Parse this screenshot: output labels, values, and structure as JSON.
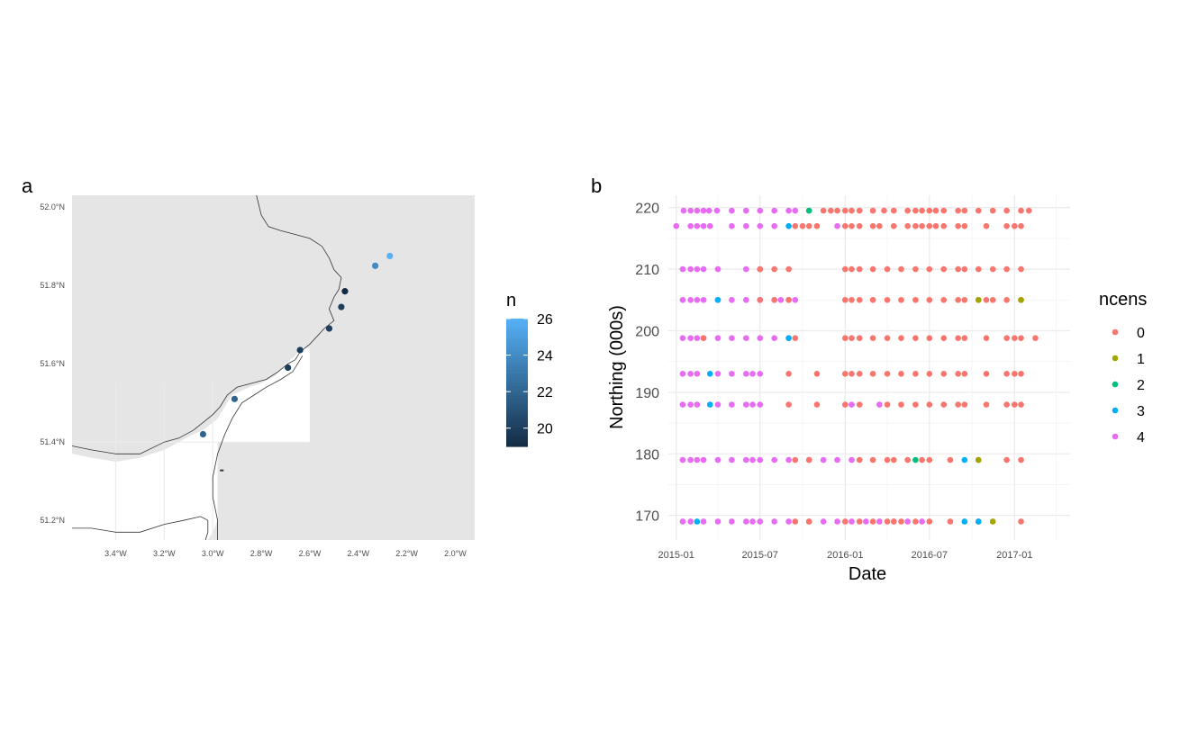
{
  "chart_data": [
    {
      "panel": "a",
      "type": "scatter",
      "subtype": "map",
      "x_ticks": [
        "3.4°W",
        "3.2°W",
        "3.0°W",
        "2.8°W",
        "2.6°W",
        "2.4°W",
        "2.2°W",
        "2.0°W"
      ],
      "y_ticks": [
        "51.2°N",
        "51.4°N",
        "51.6°N",
        "51.8°N",
        "52.0°N"
      ],
      "xlim": [
        -3.58,
        -1.92
      ],
      "ylim": [
        51.15,
        52.03
      ],
      "points": [
        {
          "lon": -3.04,
          "lat": 51.42,
          "n": 22
        },
        {
          "lon": -2.91,
          "lat": 51.51,
          "n": 22
        },
        {
          "lon": -2.69,
          "lat": 51.59,
          "n": 20
        },
        {
          "lon": -2.64,
          "lat": 51.635,
          "n": 20
        },
        {
          "lon": -2.52,
          "lat": 51.69,
          "n": 20
        },
        {
          "lon": -2.47,
          "lat": 51.745,
          "n": 20
        },
        {
          "lon": -2.455,
          "lat": 51.785,
          "n": 19
        },
        {
          "lon": -2.33,
          "lat": 51.85,
          "n": 24
        },
        {
          "lon": -2.27,
          "lat": 51.875,
          "n": 26
        }
      ],
      "legend": {
        "title": "n",
        "ticks": [
          20,
          22,
          24,
          26
        ],
        "range": [
          19,
          26
        ],
        "colors": {
          "low": "#132B43",
          "high": "#56B1F7"
        }
      },
      "colors": {
        "panel_background": "#e5e5e5",
        "land": "#ffffff",
        "coast": "#333333"
      },
      "grid": false
    },
    {
      "panel": "b",
      "type": "scatter",
      "xlabel": "Date",
      "ylabel": "Northing (000s)",
      "x_ticks": [
        "2015-01",
        "2015-07",
        "2016-01",
        "2016-07",
        "2017-01"
      ],
      "y_ticks": [
        170,
        180,
        190,
        200,
        210,
        220
      ],
      "xlim": [
        "2014-12-15",
        "2017-05-01"
      ],
      "ylim": [
        166,
        222
      ],
      "grid": true,
      "legend": {
        "title": "ncens",
        "placement": "right",
        "entries": [
          {
            "label": "0",
            "color": "#F8766D"
          },
          {
            "label": "1",
            "color": "#A3A500"
          },
          {
            "label": "2",
            "color": "#00BF7D"
          },
          {
            "label": "3",
            "color": "#00B0F6"
          },
          {
            "label": "4",
            "color": "#E76BF3"
          }
        ]
      },
      "rows": [
        {
          "y": 219.5,
          "c4": [
            "2015-01-17",
            "2015-02-01",
            "2015-02-15",
            "2015-03-01",
            "2015-03-13",
            "2015-03-30",
            "2015-05-01",
            "2015-06-01",
            "2015-07-01",
            "2015-08-01",
            "2015-09-01",
            "2015-09-15"
          ],
          "c0": [
            "2015-10-15",
            "2015-11-15",
            "2015-12-01",
            "2015-12-15",
            "2016-01-01",
            "2016-01-15",
            "2016-02-01",
            "2016-03-01",
            "2016-03-25",
            "2016-04-15",
            "2016-05-15",
            "2016-06-01",
            "2016-06-15",
            "2016-07-01",
            "2016-07-15",
            "2016-08-01",
            "2016-09-01",
            "2016-09-15",
            "2016-10-15",
            "2016-11-15",
            "2016-12-15",
            "2017-01-15",
            "2017-02-01"
          ],
          "c2": [
            "2015-10-15"
          ]
        },
        {
          "y": 217,
          "c4": [
            "2015-01-01",
            "2015-02-01",
            "2015-02-15",
            "2015-03-01",
            "2015-03-15",
            "2015-05-01",
            "2015-06-01",
            "2015-07-01",
            "2015-08-01",
            "2015-12-15"
          ],
          "c0": [
            "2015-09-15",
            "2015-10-01",
            "2015-10-15",
            "2015-11-01",
            "2016-01-01",
            "2016-01-15",
            "2016-02-01",
            "2016-03-01",
            "2016-03-15",
            "2016-04-15",
            "2016-05-15",
            "2016-06-01",
            "2016-06-15",
            "2016-07-01",
            "2016-07-15",
            "2016-08-01",
            "2016-09-01",
            "2016-09-15",
            "2016-11-01",
            "2016-12-15",
            "2017-01-01",
            "2017-01-15"
          ],
          "c3": [
            "2015-09-01"
          ]
        },
        {
          "y": 210,
          "c4": [
            "2015-01-15",
            "2015-02-01",
            "2015-02-15",
            "2015-03-01",
            "2015-04-01",
            "2015-06-01",
            "2015-07-01"
          ],
          "c0": [
            "2015-07-01",
            "2015-08-01",
            "2015-09-01",
            "2016-01-01",
            "2016-01-15",
            "2016-02-01",
            "2016-03-01",
            "2016-04-01",
            "2016-05-01",
            "2016-06-01",
            "2016-07-01",
            "2016-08-01",
            "2016-09-01",
            "2016-09-15",
            "2016-10-15",
            "2016-11-15",
            "2016-12-15",
            "2017-01-15"
          ]
        },
        {
          "y": 205,
          "c4": [
            "2015-01-15",
            "2015-02-01",
            "2015-02-15",
            "2015-03-01",
            "2015-04-01",
            "2015-05-01",
            "2015-06-01",
            "2015-07-01",
            "2015-08-01",
            "2015-08-15",
            "2015-09-01",
            "2015-09-15"
          ],
          "c0": [
            "2015-07-01",
            "2015-08-01",
            "2015-09-01",
            "2016-01-01",
            "2016-01-15",
            "2016-02-01",
            "2016-03-01",
            "2016-04-01",
            "2016-05-01",
            "2016-06-01",
            "2016-07-01",
            "2016-08-01",
            "2016-09-01",
            "2016-09-15",
            "2016-10-15",
            "2016-11-01",
            "2016-11-15",
            "2016-12-15",
            "2017-01-15"
          ],
          "c1": [
            "2016-10-15",
            "2017-01-15"
          ],
          "c3": [
            "2015-04-01"
          ]
        },
        {
          "y": 198.8,
          "c4": [
            "2015-01-15",
            "2015-02-01",
            "2015-02-15",
            "2015-03-01",
            "2015-04-01",
            "2015-05-01",
            "2015-06-01",
            "2015-07-01",
            "2015-08-01",
            "2015-09-01"
          ],
          "c0": [
            "2015-03-01",
            "2015-09-15",
            "2016-01-01",
            "2016-01-15",
            "2016-02-01",
            "2016-03-01",
            "2016-04-01",
            "2016-05-01",
            "2016-06-01",
            "2016-07-01",
            "2016-08-01",
            "2016-09-01",
            "2016-09-15",
            "2016-11-01",
            "2016-12-15",
            "2017-01-01",
            "2017-01-15",
            "2017-02-15"
          ],
          "c3": [
            "2015-09-01"
          ]
        },
        {
          "y": 193,
          "c4": [
            "2015-01-15",
            "2015-02-01",
            "2015-02-15",
            "2015-04-01",
            "2015-05-01",
            "2015-06-01",
            "2015-06-15",
            "2015-07-01"
          ],
          "c0": [
            "2015-09-01",
            "2015-11-01",
            "2016-01-01",
            "2016-01-15",
            "2016-02-01",
            "2016-03-01",
            "2016-04-01",
            "2016-05-01",
            "2016-06-01",
            "2016-07-01",
            "2016-08-01",
            "2016-09-01",
            "2016-09-15",
            "2016-11-01",
            "2016-12-15",
            "2017-01-01",
            "2017-01-15"
          ],
          "c3": [
            "2015-03-15"
          ]
        },
        {
          "y": 188,
          "c4": [
            "2015-01-15",
            "2015-02-01",
            "2015-02-15",
            "2015-04-01",
            "2015-05-01",
            "2015-06-01",
            "2015-06-15",
            "2015-07-01",
            "2016-01-15",
            "2016-03-15"
          ],
          "c0": [
            "2015-09-01",
            "2015-11-01",
            "2016-01-01",
            "2016-02-01",
            "2016-04-01",
            "2016-05-01",
            "2016-06-01",
            "2016-07-01",
            "2016-08-01",
            "2016-09-01",
            "2016-09-15",
            "2016-11-01",
            "2016-12-15",
            "2017-01-01",
            "2017-01-15"
          ],
          "c3": [
            "2015-03-15"
          ]
        },
        {
          "y": 179,
          "c4": [
            "2015-01-15",
            "2015-02-01",
            "2015-02-15",
            "2015-03-01",
            "2015-04-01",
            "2015-05-01",
            "2015-06-01",
            "2015-06-15",
            "2015-07-01",
            "2015-08-01",
            "2015-09-01",
            "2015-10-15",
            "2015-11-15",
            "2015-12-15",
            "2016-01-15"
          ],
          "c0": [
            "2015-09-15",
            "2015-10-15",
            "2016-02-01",
            "2016-03-01",
            "2016-04-01",
            "2016-04-15",
            "2016-05-15",
            "2016-06-15",
            "2016-07-01",
            "2016-08-15",
            "2016-10-15",
            "2016-12-15",
            "2017-01-15"
          ],
          "c2": [
            "2016-06-01"
          ],
          "c3": [
            "2016-09-15"
          ],
          "c1": [
            "2016-10-15"
          ]
        },
        {
          "y": 169,
          "c4": [
            "2015-01-15",
            "2015-02-01",
            "2015-03-01",
            "2015-04-01",
            "2015-05-01",
            "2015-06-01",
            "2015-06-15",
            "2015-07-01",
            "2015-08-01",
            "2015-09-01",
            "2015-10-15",
            "2015-11-15",
            "2015-12-15",
            "2016-01-15",
            "2016-02-15",
            "2016-03-15",
            "2016-04-15",
            "2016-05-15",
            "2016-06-15"
          ],
          "c0": [
            "2015-09-15",
            "2015-10-15",
            "2016-01-01",
            "2016-02-01",
            "2016-03-01",
            "2016-04-01",
            "2016-04-15",
            "2016-05-01",
            "2016-06-01",
            "2016-07-01",
            "2016-08-15",
            "2016-10-15",
            "2017-01-15"
          ],
          "c3": [
            "2015-02-15",
            "2016-09-15",
            "2016-10-15"
          ],
          "c1": [
            "2016-11-15"
          ]
        }
      ]
    }
  ],
  "labels": {
    "a": "a",
    "b": "b",
    "xlabel": "Date",
    "ylabel": "Northing (000s)",
    "legend_n_title": "n",
    "legend_ncens_title": "ncens"
  }
}
